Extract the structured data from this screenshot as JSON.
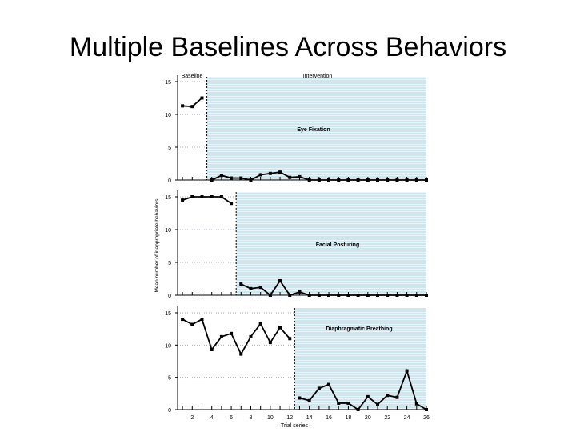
{
  "slide": {
    "title": "Multiple Baselines Across Behaviors"
  },
  "colors": {
    "intervention_shade": "#cfe6ee",
    "line": "#000000",
    "axis": "#000000",
    "baseline_grid": "#9fb3bf"
  },
  "chart_data": [
    {
      "type": "line",
      "title": "Eye Fixation",
      "phase_labels": [
        "Baseline",
        "Intervention"
      ],
      "ylabel": "",
      "xlabel": "",
      "ylim": [
        0,
        15
      ],
      "yticks": [
        0,
        5,
        10,
        15
      ],
      "ytick_labels": [
        "0",
        "5",
        "10",
        "15"
      ],
      "xlim": [
        0.5,
        26
      ],
      "phase_change_after": 3,
      "grid": true,
      "series": [
        {
          "segments": [
            {
              "x": [
                1,
                2,
                3
              ],
              "y": [
                11.3,
                11.2,
                12.5
              ]
            },
            {
              "x": [
                4,
                5,
                6,
                7,
                8,
                9,
                10,
                11,
                12,
                13,
                14,
                15,
                16,
                17,
                18,
                19,
                20,
                21,
                22,
                23,
                24,
                25,
                26
              ],
              "y": [
                0,
                0.7,
                0.3,
                0.3,
                0,
                0.8,
                1,
                1.2,
                0.4,
                0.5,
                0,
                0,
                0,
                0,
                0,
                0,
                0,
                0,
                0,
                0,
                0,
                0,
                0
              ]
            }
          ]
        }
      ]
    },
    {
      "type": "line",
      "title": "Facial Posturing",
      "ylabel": "Mean number of inappropriate behaviors",
      "xlabel": "",
      "ylim": [
        0,
        15
      ],
      "yticks": [
        0,
        5,
        10,
        15
      ],
      "ytick_labels": [
        "0",
        "5",
        "10",
        "15"
      ],
      "xlim": [
        0.5,
        26
      ],
      "phase_change_after": 6,
      "grid": true,
      "series": [
        {
          "segments": [
            {
              "x": [
                1,
                2,
                3,
                4,
                5,
                6
              ],
              "y": [
                14.5,
                15,
                15,
                15,
                15,
                14
              ]
            },
            {
              "x": [
                7,
                8,
                9,
                10,
                11,
                12,
                13,
                14,
                15,
                16,
                17,
                18,
                19,
                20,
                21,
                22,
                23,
                24,
                25,
                26
              ],
              "y": [
                1.7,
                1,
                1.2,
                0,
                2.2,
                0,
                0.5,
                0,
                0,
                0,
                0,
                0,
                0,
                0,
                0,
                0,
                0,
                0,
                0,
                0
              ]
            }
          ]
        }
      ]
    },
    {
      "type": "line",
      "title": "Diaphragmatic Breathing",
      "ylabel": "",
      "xlabel": "Trial series",
      "ylim": [
        0,
        15
      ],
      "yticks": [
        0,
        5,
        10,
        15
      ],
      "ytick_labels": [
        "0",
        "5",
        "10",
        "15"
      ],
      "xlim": [
        0.5,
        26
      ],
      "xticks": [
        2,
        4,
        6,
        8,
        10,
        12,
        14,
        16,
        18,
        20,
        22,
        24,
        26
      ],
      "xtick_labels": [
        "2",
        "4",
        "6",
        "8",
        "10",
        "12",
        "14",
        "16",
        "18",
        "20",
        "22",
        "24",
        "26"
      ],
      "phase_change_after": 12,
      "grid": true,
      "series": [
        {
          "segments": [
            {
              "x": [
                1,
                2,
                3,
                4,
                5,
                6,
                7,
                8,
                9,
                10,
                11,
                12
              ],
              "y": [
                14,
                13.2,
                14,
                9.3,
                11.3,
                11.8,
                8.6,
                11.3,
                13.3,
                10.4,
                12.7,
                11
              ]
            },
            {
              "x": [
                13,
                14,
                15,
                16,
                17,
                18,
                19,
                20,
                21,
                22,
                23,
                24,
                25,
                26
              ],
              "y": [
                1.8,
                1.4,
                3.3,
                3.9,
                1,
                1,
                0,
                2,
                0.8,
                2.2,
                1.9,
                6,
                0.9,
                0
              ]
            }
          ]
        }
      ]
    }
  ]
}
